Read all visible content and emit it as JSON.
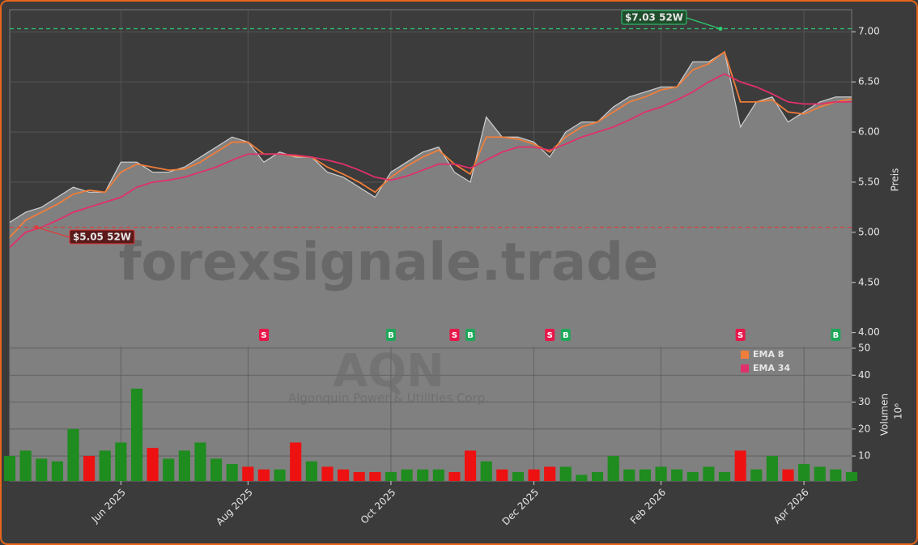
{
  "chart_data": [
    {
      "type": "line",
      "title": "AQN",
      "subtitle": "Algonquin Power & Utilities Corp.",
      "watermark": "forexsignale.trade",
      "ylabel": "Preis",
      "categories": [
        null,
        null,
        null,
        null,
        null,
        null,
        null,
        "Jun 2025",
        null,
        null,
        null,
        null,
        null,
        null,
        null,
        "Aug 2025",
        null,
        null,
        null,
        null,
        null,
        null,
        null,
        null,
        "Oct 2025",
        null,
        null,
        null,
        null,
        null,
        null,
        null,
        null,
        "Dec 2025",
        null,
        null,
        null,
        null,
        null,
        null,
        null,
        "Feb 2026",
        null,
        null,
        null,
        null,
        null,
        null,
        null,
        null,
        "Apr 2026",
        null,
        null,
        null
      ],
      "close": [
        5.1,
        5.2,
        5.25,
        5.35,
        5.45,
        5.4,
        5.4,
        5.7,
        5.7,
        5.6,
        5.6,
        5.65,
        5.75,
        5.85,
        5.95,
        5.9,
        5.7,
        5.8,
        5.75,
        5.75,
        5.6,
        5.55,
        5.45,
        5.35,
        5.6,
        5.7,
        5.8,
        5.85,
        5.6,
        5.5,
        6.15,
        5.95,
        5.95,
        5.9,
        5.75,
        6.0,
        6.1,
        6.1,
        6.25,
        6.35,
        6.4,
        6.45,
        6.45,
        6.7,
        6.7,
        6.8,
        6.05,
        6.3,
        6.35,
        6.1,
        6.2,
        6.3,
        6.35,
        6.35
      ],
      "close_color": "#d0d0d0",
      "area_color": "#808080",
      "series": [
        {
          "name": "EMA 8",
          "color": "#f07d3a",
          "values": [
            4.95,
            5.12,
            5.2,
            5.28,
            5.38,
            5.42,
            5.4,
            5.6,
            5.68,
            5.65,
            5.62,
            5.63,
            5.7,
            5.8,
            5.9,
            5.9,
            5.78,
            5.78,
            5.76,
            5.75,
            5.65,
            5.58,
            5.5,
            5.4,
            5.55,
            5.66,
            5.75,
            5.82,
            5.68,
            5.58,
            5.95,
            5.95,
            5.93,
            5.88,
            5.8,
            5.95,
            6.05,
            6.1,
            6.2,
            6.3,
            6.35,
            6.42,
            6.45,
            6.62,
            6.68,
            6.8,
            6.3,
            6.3,
            6.32,
            6.2,
            6.18,
            6.25,
            6.3,
            6.33
          ]
        },
        {
          "name": "EMA 34",
          "color": "#e0306a",
          "values": [
            4.85,
            5.0,
            5.05,
            5.12,
            5.2,
            5.25,
            5.3,
            5.35,
            5.45,
            5.5,
            5.52,
            5.55,
            5.6,
            5.65,
            5.72,
            5.78,
            5.78,
            5.78,
            5.77,
            5.75,
            5.72,
            5.68,
            5.62,
            5.55,
            5.52,
            5.56,
            5.62,
            5.68,
            5.68,
            5.64,
            5.72,
            5.8,
            5.85,
            5.85,
            5.82,
            5.88,
            5.95,
            6.0,
            6.05,
            6.12,
            6.2,
            6.25,
            6.32,
            6.4,
            6.5,
            6.58,
            6.5,
            6.45,
            6.38,
            6.3,
            6.28,
            6.28,
            6.3,
            6.3
          ]
        }
      ],
      "hlines": [
        {
          "value": 7.03,
          "label": "$7.03 52W",
          "color": "#2ecc71"
        },
        {
          "value": 5.05,
          "label": "$5.05 52W",
          "color": "#e03a3a"
        }
      ],
      "signals": [
        {
          "index": 16,
          "label": "S",
          "color": "#e8174a"
        },
        {
          "index": 24,
          "label": "B",
          "color": "#1fa85a"
        },
        {
          "index": 28,
          "label": "S",
          "color": "#e8174a"
        },
        {
          "index": 29,
          "label": "B",
          "color": "#1fa85a"
        },
        {
          "index": 34,
          "label": "S",
          "color": "#e8174a"
        },
        {
          "index": 35,
          "label": "B",
          "color": "#1fa85a"
        },
        {
          "index": 46,
          "label": "S",
          "color": "#e8174a"
        },
        {
          "index": 52,
          "label": "B",
          "color": "#1fa85a"
        }
      ],
      "ylim": [
        3.86,
        7.22
      ],
      "yticks": [
        {
          "value": 4,
          "label": "4.00"
        },
        {
          "value": 4.5,
          "label": "4.50"
        },
        {
          "value": 5,
          "label": "5.00"
        },
        {
          "value": 5.5,
          "label": "5.50"
        },
        {
          "value": 6,
          "label": "6.00"
        },
        {
          "value": 6.5,
          "label": "6.50"
        },
        {
          "value": 7,
          "label": "7.00"
        }
      ],
      "grid": true
    },
    {
      "type": "bar",
      "ylabel": "Volumen",
      "yunit": "10⁶",
      "values": [
        10,
        12,
        9,
        8,
        20,
        10,
        12,
        15,
        35,
        13,
        9,
        12,
        15,
        9,
        7,
        6,
        5,
        5,
        15,
        8,
        6,
        5,
        4,
        4,
        4,
        5,
        5,
        5,
        4,
        12,
        8,
        5,
        4,
        5,
        6,
        6,
        3,
        4,
        10,
        5,
        5,
        6,
        5,
        4,
        6,
        4,
        12,
        5,
        10,
        5,
        7,
        6,
        5,
        4
      ],
      "up_color": "#1e8c1e",
      "down_color": "#ee1111",
      "ylim": [
        0.7,
        50.6
      ],
      "yticks": [
        10,
        20,
        30,
        40,
        50
      ],
      "grid": true
    }
  ]
}
